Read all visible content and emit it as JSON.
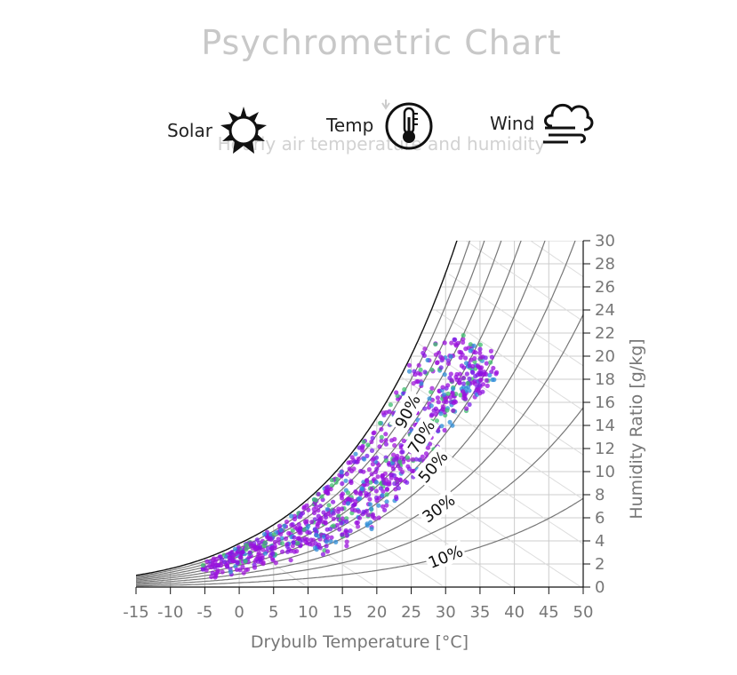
{
  "title": "Psychrometric Chart",
  "subtitle": "Hourly air temperature and humidity",
  "nav": {
    "solar": {
      "label": "Solar",
      "icon": "sun-icon"
    },
    "temp": {
      "label": "Temp",
      "icon": "thermometer-icon"
    },
    "wind": {
      "label": "Wind",
      "icon": "wind-cloud-icon"
    }
  },
  "colors": {
    "points": "#9a10dd",
    "grid": "#cccccc",
    "rh_lines": "#777777",
    "axis_text": "#777777"
  },
  "chart_data": {
    "type": "scatter",
    "xlabel": "Drybulb Temperature [°C]",
    "ylabel": "Humidity Ratio [g/kg]",
    "xlim": [
      -15,
      50
    ],
    "ylim": [
      0,
      30
    ],
    "x_ticks": [
      "-15",
      "-10",
      "-5",
      "0",
      "5",
      "10",
      "15",
      "20",
      "25",
      "30",
      "35",
      "40",
      "45",
      "50"
    ],
    "y_ticks": [
      "0",
      "2",
      "4",
      "6",
      "8",
      "10",
      "12",
      "14",
      "16",
      "18",
      "20",
      "22",
      "24",
      "26",
      "28",
      "30"
    ],
    "rh_lines": [
      100,
      90,
      80,
      70,
      60,
      50,
      40,
      30,
      20,
      10
    ],
    "rh_labels": [
      "90%",
      "70%",
      "50%",
      "30%",
      "10%"
    ],
    "y_axis_position": "right",
    "grid": true,
    "points_description_free": true,
    "series": [
      {
        "points": [
          [
            -4,
            1.6
          ],
          [
            -3,
            2.0
          ],
          [
            -2,
            1.9
          ],
          [
            -1,
            2.4
          ],
          [
            0,
            2.2
          ],
          [
            1,
            2.8
          ],
          [
            2,
            2.5
          ],
          [
            3,
            3.4
          ],
          [
            4,
            3.0
          ],
          [
            5,
            3.8
          ],
          [
            6,
            3.4
          ],
          [
            7,
            4.2
          ],
          [
            8,
            4.0
          ],
          [
            9,
            4.6
          ],
          [
            10,
            4.4
          ],
          [
            11,
            5.2
          ],
          [
            12,
            5.0
          ],
          [
            13,
            6.2
          ],
          [
            14,
            5.8
          ],
          [
            15,
            7.0
          ],
          [
            16,
            6.6
          ],
          [
            17,
            8.2
          ],
          [
            18,
            7.4
          ],
          [
            19,
            9.2
          ],
          [
            20,
            8.6
          ],
          [
            21,
            10.4
          ],
          [
            22,
            10.0
          ],
          [
            23,
            11.8
          ],
          [
            24,
            11.2
          ],
          [
            25,
            13.4
          ],
          [
            26,
            13.0
          ],
          [
            27,
            14.8
          ],
          [
            28,
            14.2
          ],
          [
            29,
            16.4
          ],
          [
            30,
            15.8
          ],
          [
            31,
            17.6
          ],
          [
            32,
            17.0
          ],
          [
            33,
            18.6
          ],
          [
            34,
            18.0
          ],
          [
            35,
            19.6
          ],
          [
            0,
            4.0
          ],
          [
            2,
            4.3
          ],
          [
            5,
            5.2
          ],
          [
            8,
            6.0
          ],
          [
            10,
            7.4
          ],
          [
            12,
            8.4
          ],
          [
            14,
            9.6
          ],
          [
            16,
            10.4
          ],
          [
            18,
            11.6
          ],
          [
            20,
            13.2
          ],
          [
            22,
            15.0
          ],
          [
            24,
            16.8
          ],
          [
            26,
            18.4
          ],
          [
            28,
            19.6
          ],
          [
            30,
            20.4
          ],
          [
            32,
            20.8
          ],
          [
            34,
            20.2
          ],
          [
            36,
            19.4
          ],
          [
            12,
            3.6
          ],
          [
            15,
            4.6
          ],
          [
            18,
            6.0
          ],
          [
            20,
            7.0
          ],
          [
            22,
            8.4
          ],
          [
            24,
            9.8
          ],
          [
            26,
            11.0
          ],
          [
            28,
            12.8
          ],
          [
            30,
            14.6
          ],
          [
            32,
            16.2
          ],
          [
            34,
            17.4
          ],
          [
            36,
            17.8
          ]
        ]
      }
    ]
  }
}
